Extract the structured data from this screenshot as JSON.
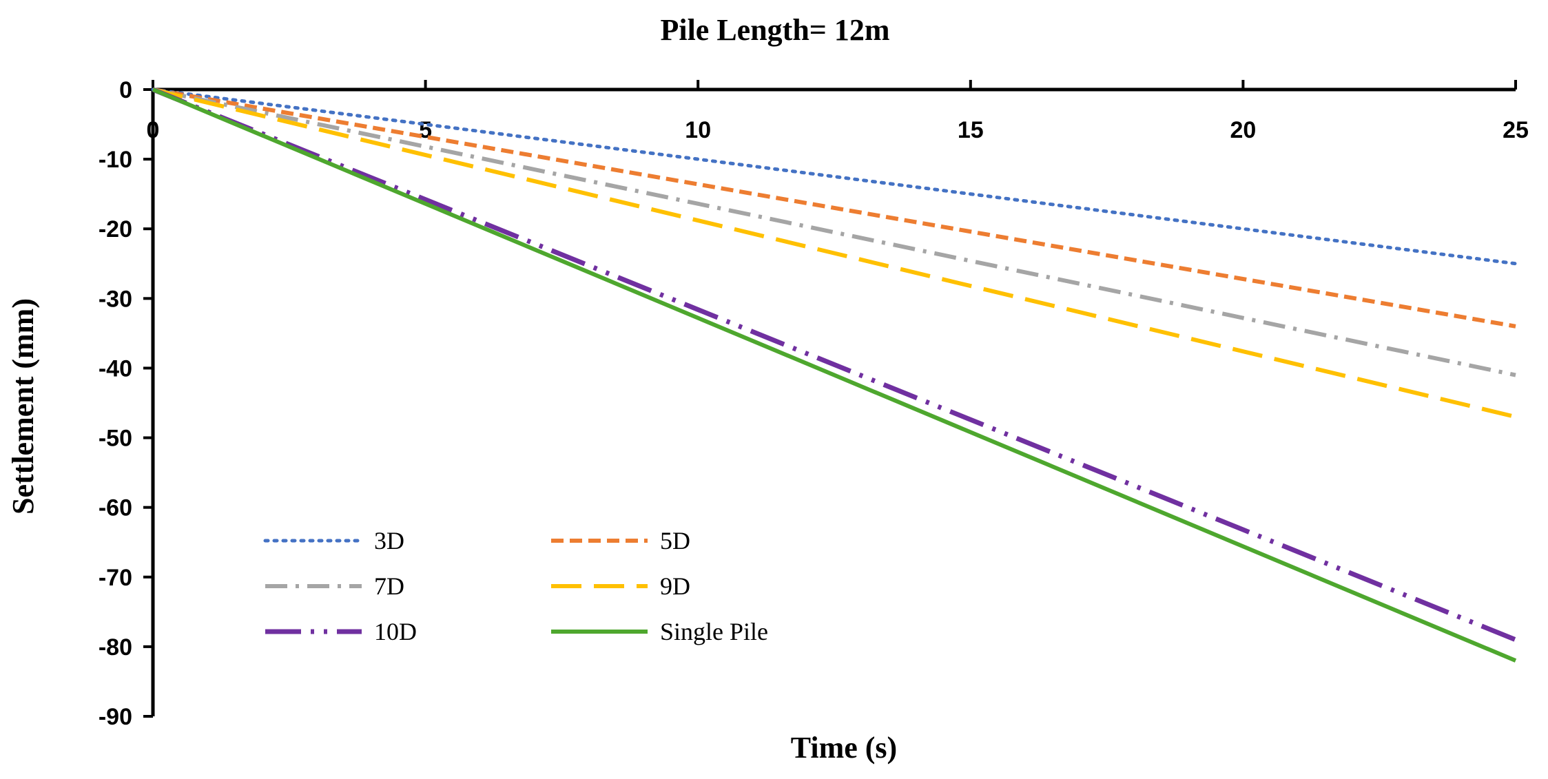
{
  "chart_data": {
    "type": "line",
    "title": "Pile Length= 12m",
    "xlabel": "Time (s)",
    "ylabel": "Settlement (mm)",
    "xlim": [
      0,
      25
    ],
    "ylim": [
      -90,
      0
    ],
    "x_ticks": [
      "0",
      "5",
      "10",
      "15",
      "20",
      "25"
    ],
    "y_ticks": [
      "0",
      "-10",
      "-20",
      "-30",
      "-40",
      "-50",
      "-60",
      "-70",
      "-80",
      "-90"
    ],
    "grid": false,
    "legend_position": "lower-left",
    "series": [
      {
        "name": "3D",
        "color": "#4472C4",
        "style": "dotted",
        "x": [
          0,
          25
        ],
        "y": [
          0,
          -25
        ]
      },
      {
        "name": "5D",
        "color": "#ED7D31",
        "style": "dashed",
        "x": [
          0,
          25
        ],
        "y": [
          0,
          -34
        ]
      },
      {
        "name": "7D",
        "color": "#A5A5A5",
        "style": "dash-dot",
        "x": [
          0,
          25
        ],
        "y": [
          0,
          -41
        ]
      },
      {
        "name": "9D",
        "color": "#FFC000",
        "style": "long-dash",
        "x": [
          0,
          25
        ],
        "y": [
          0,
          -47
        ]
      },
      {
        "name": "10D",
        "color": "#7030A0",
        "style": "long-dash-dot-dot",
        "x": [
          0,
          25
        ],
        "y": [
          0,
          -79
        ]
      },
      {
        "name": "Single Pile",
        "color": "#4EA72E",
        "style": "solid",
        "x": [
          0,
          25
        ],
        "y": [
          0,
          -82
        ]
      }
    ]
  }
}
